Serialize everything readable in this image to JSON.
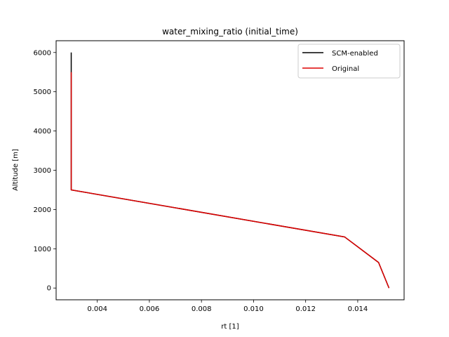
{
  "chart_data": {
    "type": "line",
    "title": "water_mixing_ratio (initial_time)",
    "xlabel": "rt [1]",
    "ylabel": "Altitude [m]",
    "xlim": [
      0.00242,
      0.01578
    ],
    "ylim": [
      -300,
      6300
    ],
    "xticks": [
      0.004,
      0.006,
      0.008,
      0.01,
      0.012,
      0.014
    ],
    "xtick_labels": [
      "0.004",
      "0.006",
      "0.008",
      "0.010",
      "0.012",
      "0.014"
    ],
    "yticks": [
      0,
      1000,
      2000,
      3000,
      4000,
      5000,
      6000
    ],
    "ytick_labels": [
      "0",
      "1000",
      "2000",
      "3000",
      "4000",
      "5000",
      "6000"
    ],
    "grid": false,
    "legend_position": "top-right",
    "series": [
      {
        "name": "SCM-enabled",
        "color": "#000000",
        "points": [
          [
            0.0152,
            0
          ],
          [
            0.0148,
            650
          ],
          [
            0.0135,
            1300
          ],
          [
            0.003,
            2500
          ],
          [
            0.003,
            3000
          ],
          [
            0.003,
            4000
          ],
          [
            0.003,
            5000
          ],
          [
            0.003,
            6000
          ]
        ]
      },
      {
        "name": "Original",
        "color": "#dd0000",
        "points": [
          [
            0.0152,
            0
          ],
          [
            0.0148,
            650
          ],
          [
            0.0135,
            1300
          ],
          [
            0.003,
            2500
          ],
          [
            0.003,
            3000
          ],
          [
            0.003,
            4000
          ],
          [
            0.003,
            5000
          ],
          [
            0.003,
            5500
          ]
        ]
      }
    ]
  }
}
